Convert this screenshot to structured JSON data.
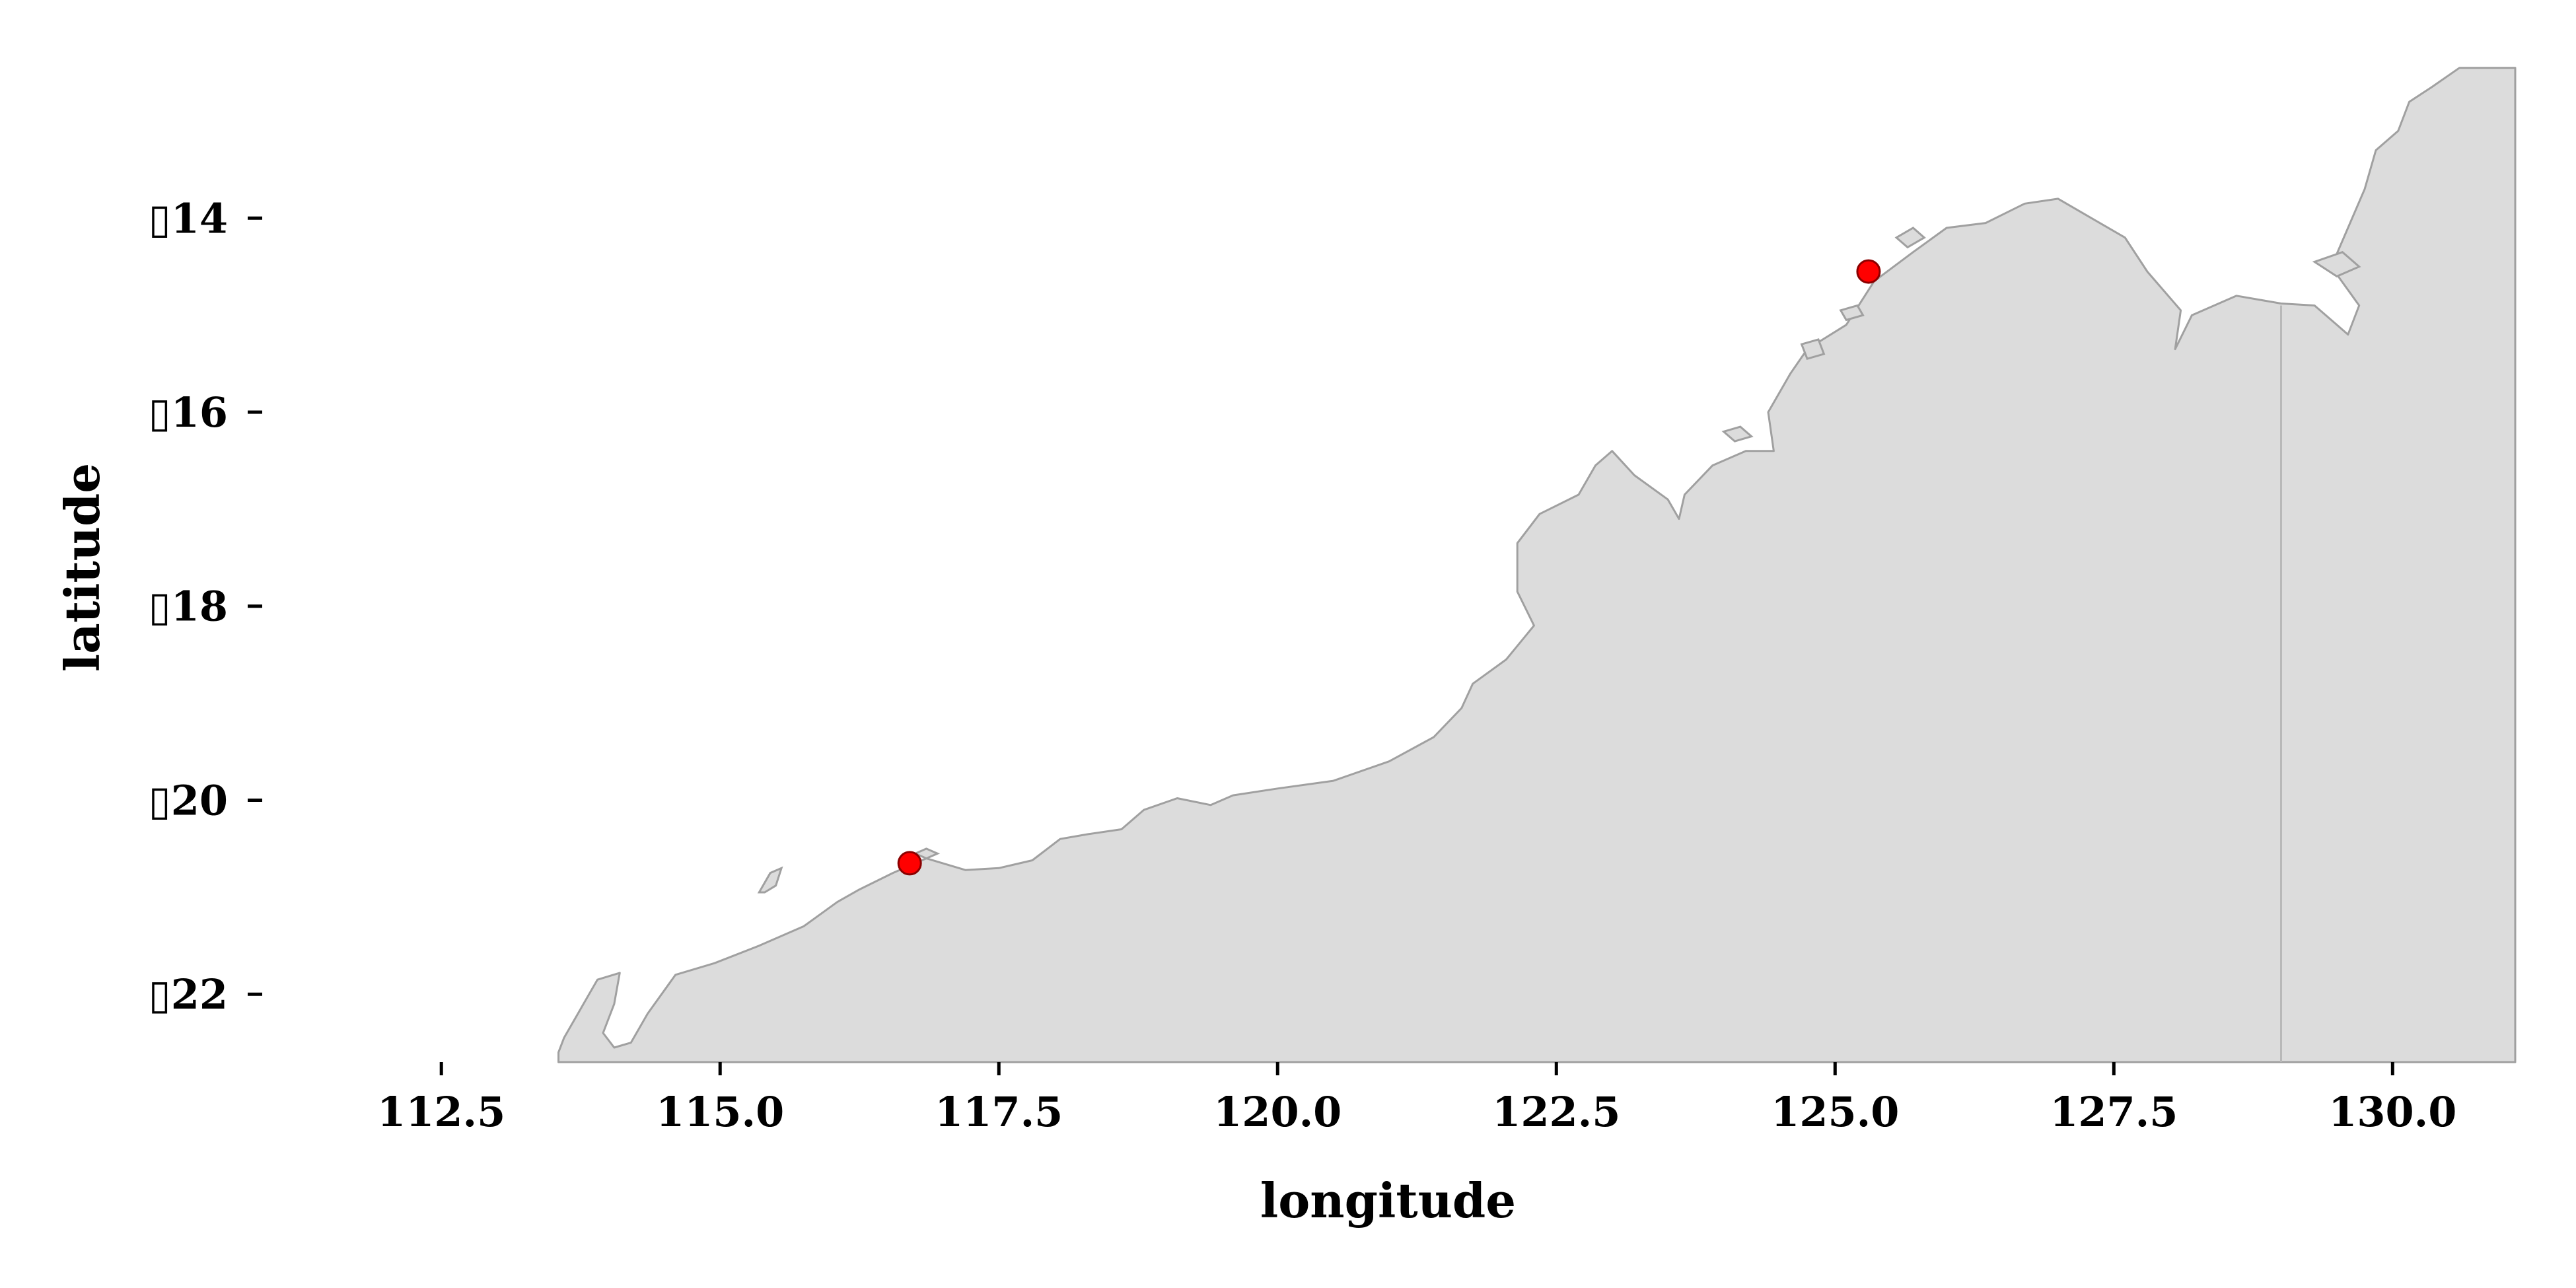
{
  "chart_data": {
    "type": "scatter",
    "title": "",
    "xlabel": "longitude",
    "ylabel": "latitude",
    "xlim": [
      111.0,
      131.1
    ],
    "ylim": [
      -22.7,
      -12.5
    ],
    "x_ticks": [
      112.5,
      115.0,
      117.5,
      120.0,
      122.5,
      125.0,
      127.5,
      130.0
    ],
    "x_tick_labels": [
      "112.5",
      "115.0",
      "117.5",
      "120.0",
      "122.5",
      "125.0",
      "127.5",
      "130.0"
    ],
    "y_ticks": [
      -14,
      -16,
      -18,
      -20,
      -22
    ],
    "y_tick_labels": [
      "▯14",
      "▯16",
      "▯18",
      "▯20",
      "▯22"
    ],
    "grid": false,
    "land_color": "#dcdcdc",
    "coast_color": "#a0a0a0",
    "marker_color": "#ff0000",
    "marker_edge_color": "#8b0000",
    "points": [
      {
        "x": 116.7,
        "y": -20.65
      },
      {
        "x": 125.3,
        "y": -14.55
      }
    ],
    "border_lon": 129.0,
    "coastline": [
      [
        113.55,
        -22.6
      ],
      [
        113.6,
        -22.45
      ],
      [
        113.75,
        -22.15
      ],
      [
        113.9,
        -21.85
      ],
      [
        114.1,
        -21.78
      ],
      [
        114.05,
        -22.1
      ],
      [
        113.95,
        -22.4
      ],
      [
        114.05,
        -22.55
      ],
      [
        114.2,
        -22.5
      ],
      [
        114.35,
        -22.2
      ],
      [
        114.6,
        -21.8
      ],
      [
        114.95,
        -21.68
      ],
      [
        115.35,
        -21.5
      ],
      [
        115.75,
        -21.3
      ],
      [
        116.05,
        -21.05
      ],
      [
        116.25,
        -20.92
      ],
      [
        116.55,
        -20.75
      ],
      [
        116.85,
        -20.6
      ],
      [
        117.2,
        -20.72
      ],
      [
        117.5,
        -20.7
      ],
      [
        117.8,
        -20.62
      ],
      [
        118.05,
        -20.4
      ],
      [
        118.3,
        -20.35
      ],
      [
        118.6,
        -20.3
      ],
      [
        118.8,
        -20.1
      ],
      [
        119.1,
        -19.98
      ],
      [
        119.4,
        -20.05
      ],
      [
        119.6,
        -19.95
      ],
      [
        120.0,
        -19.88
      ],
      [
        120.5,
        -19.8
      ],
      [
        121.0,
        -19.6
      ],
      [
        121.4,
        -19.35
      ],
      [
        121.65,
        -19.05
      ],
      [
        121.75,
        -18.8
      ],
      [
        122.05,
        -18.55
      ],
      [
        122.3,
        -18.2
      ],
      [
        122.15,
        -17.85
      ],
      [
        122.15,
        -17.35
      ],
      [
        122.35,
        -17.05
      ],
      [
        122.7,
        -16.85
      ],
      [
        122.85,
        -16.55
      ],
      [
        123.0,
        -16.4
      ],
      [
        123.2,
        -16.65
      ],
      [
        123.5,
        -16.9
      ],
      [
        123.6,
        -17.1
      ],
      [
        123.65,
        -16.85
      ],
      [
        123.9,
        -16.55
      ],
      [
        124.2,
        -16.4
      ],
      [
        124.45,
        -16.4
      ],
      [
        124.4,
        -16.0
      ],
      [
        124.6,
        -15.6
      ],
      [
        124.75,
        -15.35
      ],
      [
        125.1,
        -15.1
      ],
      [
        125.35,
        -14.65
      ],
      [
        125.7,
        -14.35
      ],
      [
        126.0,
        -14.1
      ],
      [
        126.35,
        -14.05
      ],
      [
        126.7,
        -13.85
      ],
      [
        127.0,
        -13.8
      ],
      [
        127.3,
        -14.0
      ],
      [
        127.6,
        -14.2
      ],
      [
        127.8,
        -14.55
      ],
      [
        128.1,
        -14.95
      ],
      [
        128.05,
        -15.35
      ],
      [
        128.2,
        -15.0
      ],
      [
        128.6,
        -14.8
      ],
      [
        129.0,
        -14.88
      ],
      [
        129.3,
        -14.9
      ],
      [
        129.5,
        -15.1
      ],
      [
        129.6,
        -15.2
      ],
      [
        129.7,
        -14.9
      ],
      [
        129.45,
        -14.5
      ],
      [
        129.6,
        -14.1
      ],
      [
        129.75,
        -13.7
      ],
      [
        129.85,
        -13.3
      ],
      [
        130.05,
        -13.1
      ],
      [
        130.15,
        -12.8
      ],
      [
        130.35,
        -12.65
      ],
      [
        130.6,
        -12.45
      ],
      [
        131.1,
        -12.45
      ]
    ],
    "islands": [
      [
        [
          115.35,
          -20.95
        ],
        [
          115.45,
          -20.75
        ],
        [
          115.55,
          -20.7
        ],
        [
          115.5,
          -20.88
        ],
        [
          115.4,
          -20.95
        ]
      ],
      [
        [
          116.75,
          -20.55
        ],
        [
          116.85,
          -20.5
        ],
        [
          116.95,
          -20.55
        ],
        [
          116.85,
          -20.6
        ]
      ],
      [
        [
          124.0,
          -16.2
        ],
        [
          124.15,
          -16.15
        ],
        [
          124.25,
          -16.25
        ],
        [
          124.1,
          -16.3
        ]
      ],
      [
        [
          124.7,
          -15.3
        ],
        [
          124.85,
          -15.25
        ],
        [
          124.9,
          -15.4
        ],
        [
          124.75,
          -15.45
        ]
      ],
      [
        [
          125.05,
          -14.95
        ],
        [
          125.2,
          -14.9
        ],
        [
          125.25,
          -15.0
        ],
        [
          125.1,
          -15.05
        ]
      ],
      [
        [
          125.55,
          -14.2
        ],
        [
          125.7,
          -14.1
        ],
        [
          125.8,
          -14.2
        ],
        [
          125.65,
          -14.3
        ]
      ],
      [
        [
          129.3,
          -14.45
        ],
        [
          129.55,
          -14.35
        ],
        [
          129.7,
          -14.5
        ],
        [
          129.5,
          -14.6
        ]
      ]
    ]
  }
}
